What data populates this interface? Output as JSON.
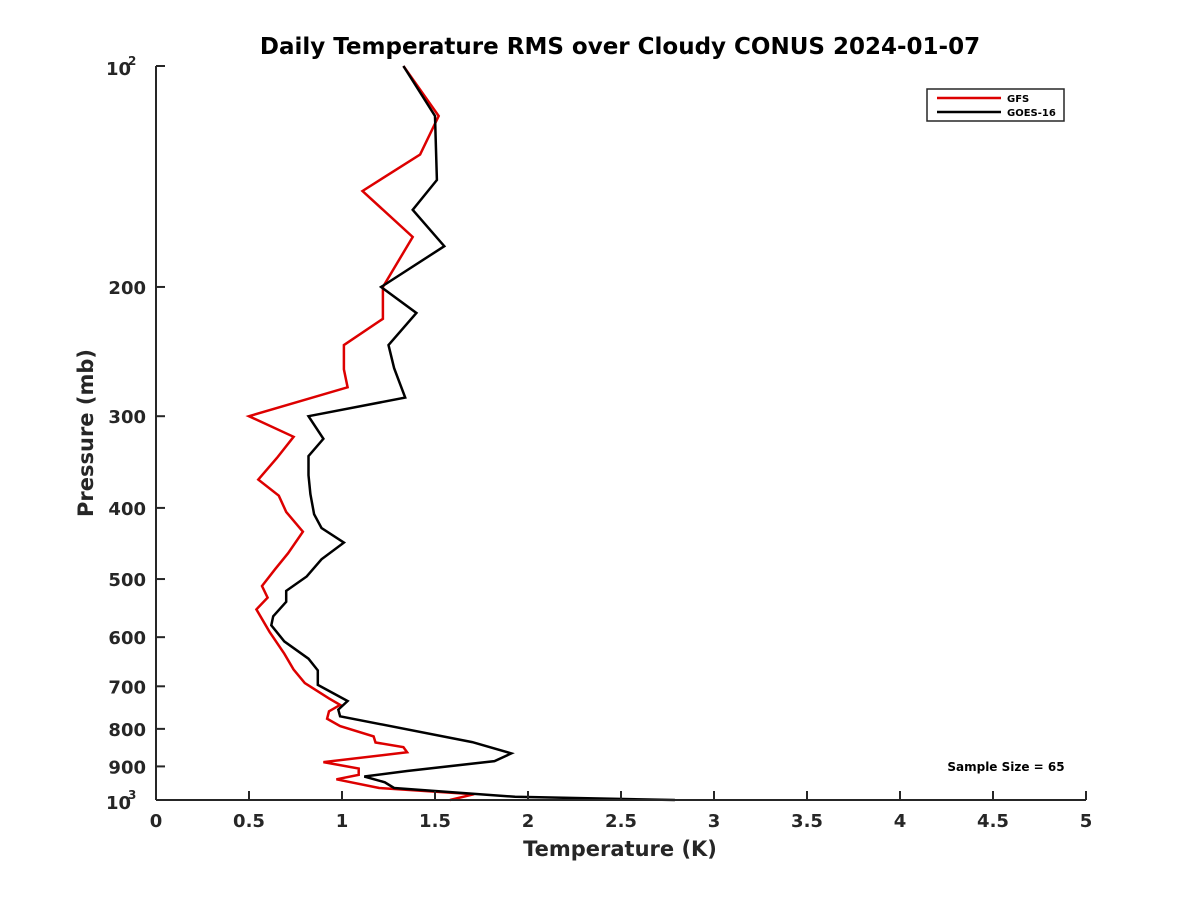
{
  "chart_data": {
    "type": "line",
    "title": "Daily Temperature RMS over Cloudy CONUS 2024-01-07",
    "xlabel": "Temperature (K)",
    "ylabel": "Pressure (mb)",
    "xlim": [
      0,
      5
    ],
    "ylim": [
      100,
      1000
    ],
    "y_scale": "log",
    "y_reversed": true,
    "grid": false,
    "legend_position": "top-right",
    "x_ticks": [
      {
        "value": 0,
        "label": "0"
      },
      {
        "value": 0.5,
        "label": "0.5"
      },
      {
        "value": 1,
        "label": "1"
      },
      {
        "value": 1.5,
        "label": "1.5"
      },
      {
        "value": 2,
        "label": "2"
      },
      {
        "value": 2.5,
        "label": "2.5"
      },
      {
        "value": 3,
        "label": "3"
      },
      {
        "value": 3.5,
        "label": "3.5"
      },
      {
        "value": 4,
        "label": "4"
      },
      {
        "value": 4.5,
        "label": "4.5"
      },
      {
        "value": 5,
        "label": "5"
      }
    ],
    "y_ticks": [
      {
        "value": 100,
        "base": "10",
        "exp": "2"
      },
      {
        "value": 200,
        "label": "200"
      },
      {
        "value": 300,
        "label": "300"
      },
      {
        "value": 400,
        "label": "400"
      },
      {
        "value": 500,
        "label": "500"
      },
      {
        "value": 600,
        "label": "600"
      },
      {
        "value": 700,
        "label": "700"
      },
      {
        "value": 800,
        "label": "800"
      },
      {
        "value": 900,
        "label": "900"
      },
      {
        "value": 1000,
        "base": "10",
        "exp": "3"
      }
    ],
    "series": [
      {
        "name": "GFS",
        "color": "#dd0000",
        "points": [
          [
            1.33,
            100
          ],
          [
            1.52,
            117
          ],
          [
            1.42,
            132
          ],
          [
            1.11,
            148
          ],
          [
            1.38,
            171
          ],
          [
            1.22,
            200
          ],
          [
            1.22,
            221
          ],
          [
            1.01,
            240
          ],
          [
            1.01,
            259
          ],
          [
            1.03,
            274
          ],
          [
            0.5,
            300
          ],
          [
            0.74,
            320
          ],
          [
            0.65,
            342
          ],
          [
            0.55,
            366
          ],
          [
            0.66,
            385
          ],
          [
            0.7,
            405
          ],
          [
            0.79,
            431
          ],
          [
            0.71,
            461
          ],
          [
            0.64,
            485
          ],
          [
            0.57,
            511
          ],
          [
            0.6,
            530
          ],
          [
            0.54,
            550
          ],
          [
            0.61,
            590
          ],
          [
            0.69,
            632
          ],
          [
            0.74,
            664
          ],
          [
            0.8,
            693
          ],
          [
            0.93,
            727
          ],
          [
            0.99,
            742
          ],
          [
            0.93,
            757
          ],
          [
            0.92,
            775
          ],
          [
            0.99,
            793
          ],
          [
            1.17,
            819
          ],
          [
            1.18,
            835
          ],
          [
            1.33,
            847
          ],
          [
            1.35,
            861
          ],
          [
            0.9,
            888
          ],
          [
            1.09,
            906
          ],
          [
            1.09,
            924
          ],
          [
            0.97,
            937
          ],
          [
            1.2,
            963
          ],
          [
            1.71,
            982
          ],
          [
            1.58,
            1000
          ]
        ]
      },
      {
        "name": "GOES-16",
        "color": "#000000",
        "points": [
          [
            1.33,
            100
          ],
          [
            1.5,
            117
          ],
          [
            1.51,
            143
          ],
          [
            1.38,
            157
          ],
          [
            1.55,
            176
          ],
          [
            1.21,
            200
          ],
          [
            1.4,
            217
          ],
          [
            1.25,
            240
          ],
          [
            1.28,
            258
          ],
          [
            1.34,
            283
          ],
          [
            0.82,
            300
          ],
          [
            0.9,
            322
          ],
          [
            0.82,
            340
          ],
          [
            0.82,
            361
          ],
          [
            0.83,
            383
          ],
          [
            0.85,
            408
          ],
          [
            0.89,
            426
          ],
          [
            1.01,
            446
          ],
          [
            0.89,
            470
          ],
          [
            0.81,
            496
          ],
          [
            0.7,
            519
          ],
          [
            0.7,
            537
          ],
          [
            0.63,
            562
          ],
          [
            0.62,
            578
          ],
          [
            0.69,
            608
          ],
          [
            0.82,
            642
          ],
          [
            0.87,
            666
          ],
          [
            0.87,
            697
          ],
          [
            1.03,
            733
          ],
          [
            0.98,
            753
          ],
          [
            0.99,
            769
          ],
          [
            1.7,
            834
          ],
          [
            1.91,
            864
          ],
          [
            1.82,
            885
          ],
          [
            1.35,
            913
          ],
          [
            1.12,
            929
          ],
          [
            1.23,
            946
          ],
          [
            1.28,
            963
          ],
          [
            1.93,
            990
          ],
          [
            2.79,
            1000
          ]
        ]
      }
    ],
    "annotation": "Sample Size = 65"
  }
}
